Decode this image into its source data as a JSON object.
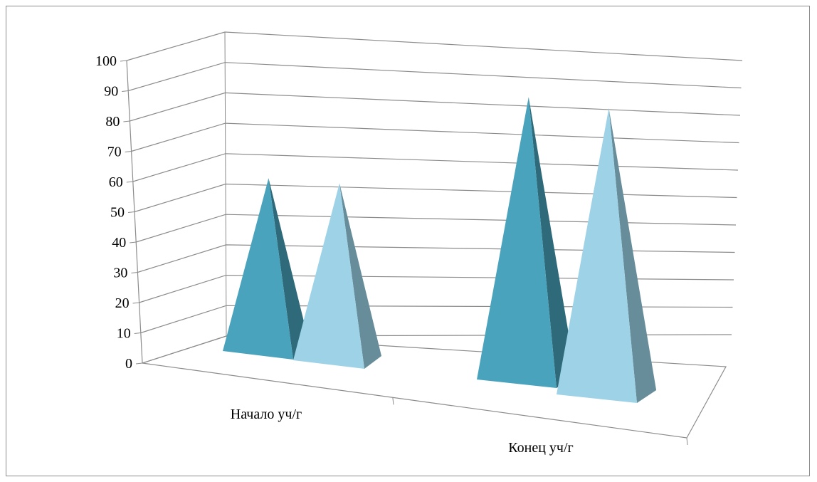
{
  "chart_data": {
    "type": "bar",
    "style": "3d-pyramid",
    "categories": [
      "Начало уч/г",
      "Конец уч/г"
    ],
    "series": [
      {
        "values": [
          60,
          92
        ],
        "color": "#4aa3bc",
        "side_color": "#2e6a7a"
      },
      {
        "values": [
          60,
          91
        ],
        "color": "#9ed2e6",
        "side_color": "#678c9a"
      }
    ],
    "ylim": [
      0,
      100
    ],
    "yticks": [
      "0",
      "10",
      "20",
      "30",
      "40",
      "50",
      "60",
      "70",
      "80",
      "90",
      "100"
    ],
    "grid": true,
    "legend": "none"
  }
}
